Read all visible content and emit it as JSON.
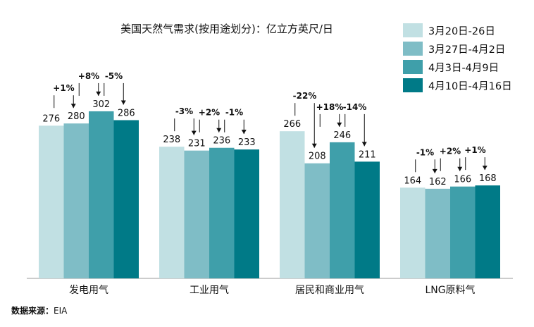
{
  "chart_data": {
    "type": "bar",
    "title": "美国天然气需求(按用途划分)：亿立方英尺/日",
    "categories": [
      "发电用气",
      "工业用气",
      "居民和商业用气",
      "LNG原料气"
    ],
    "series": [
      {
        "name": "3月20日-26日",
        "color": "#c1e0e3",
        "values": [
          276,
          238,
          266,
          164
        ]
      },
      {
        "name": "3月27日-4月2日",
        "color": "#7fbdc6",
        "values": [
          280,
          231,
          208,
          162
        ]
      },
      {
        "name": "4月3日-4月9日",
        "color": "#3f9faa",
        "values": [
          302,
          236,
          246,
          166
        ]
      },
      {
        "name": "4月10日-4月16日",
        "color": "#007a87",
        "values": [
          286,
          233,
          211,
          168
        ]
      }
    ],
    "changes": [
      [
        "+1%",
        "+8%",
        "-5%"
      ],
      [
        "-3%",
        "+2%",
        "-1%"
      ],
      [
        "-22%",
        "+18%",
        "-14%"
      ],
      [
        "-1%",
        "+2%",
        "+1%"
      ]
    ],
    "ylim": [
      0,
      330
    ],
    "legend_position": "top-right",
    "grid": false
  },
  "source": {
    "label": "数据来源：",
    "value": "EIA"
  }
}
